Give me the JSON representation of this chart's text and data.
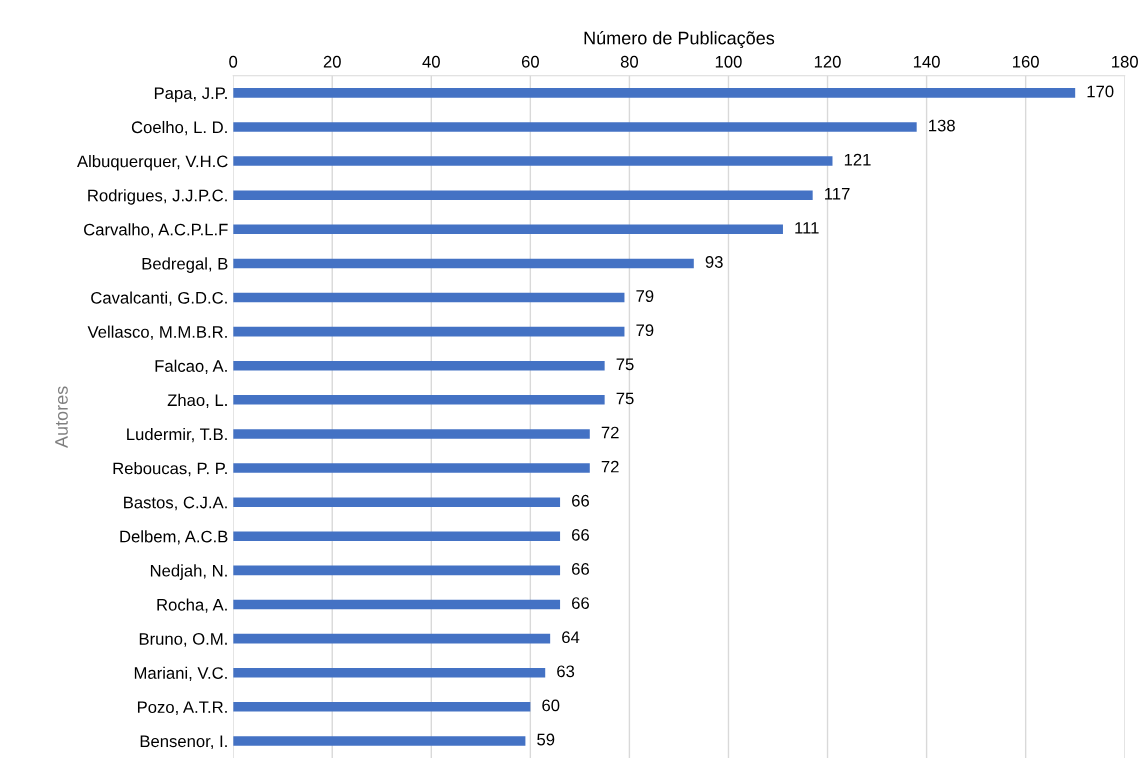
{
  "chart_data": {
    "type": "bar",
    "orientation": "horizontal",
    "xlabel": "Número de Publicações",
    "ylabel": "Autores",
    "categories": [
      "Papa, J.P.",
      "Coelho, L. D.",
      "Albuquerquer, V.H.C",
      "Rodrigues, J.J.P.C.",
      "Carvalho, A.C.P.L.F",
      "Bedregal, B",
      "Cavalcanti, G.D.C.",
      "Vellasco, M.M.B.R.",
      "Falcao, A.",
      "Zhao, L.",
      "Ludermir, T.B.",
      "Reboucas, P. P.",
      "Bastos, C.J.A.",
      "Delbem, A.C.B",
      "Nedjah, N.",
      "Rocha, A.",
      "Bruno, O.M.",
      "Mariani, V.C.",
      "Pozo, A.T.R.",
      "Bensenor, I."
    ],
    "values": [
      170,
      138,
      121,
      117,
      111,
      93,
      79,
      79,
      75,
      75,
      72,
      72,
      66,
      66,
      66,
      66,
      64,
      63,
      60,
      59
    ],
    "color": "#4472c4",
    "xlim": [
      0,
      180
    ],
    "xticks": [
      0,
      20,
      40,
      60,
      80,
      100,
      120,
      140,
      160,
      180
    ],
    "grid": "x",
    "data_labels": true,
    "legend": false
  }
}
